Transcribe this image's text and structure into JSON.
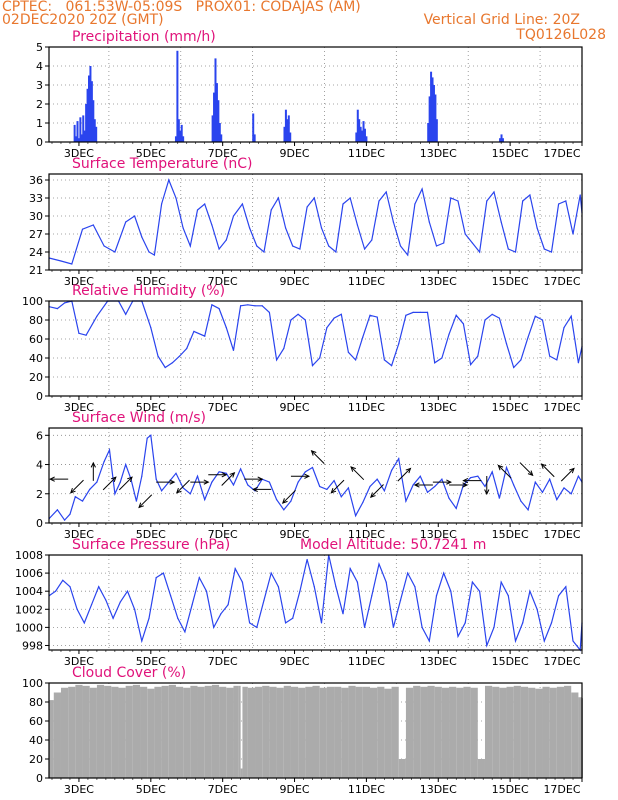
{
  "header": {
    "line1": "CPTEC:   061:53W-05:09S   PROX01: CODAJAS (AM)",
    "line2": "02DEC2020 20Z (GMT)",
    "vertical_grid": "Vertical Grid Line: 20Z",
    "run_code": "TQ0126L028"
  },
  "colors": {
    "header": "#e8772e",
    "title": "#e0127a",
    "line": "#2a44ee",
    "bar": "#2a44ee",
    "cloud": "#ababab",
    "frame": "#000000"
  },
  "chart_data": [
    {
      "id": "precip",
      "type": "bar",
      "title": "Precipitation (mm/h)",
      "ylim": [
        0,
        5
      ],
      "yticks": [
        0,
        1,
        2,
        3,
        4,
        5
      ],
      "xticks": [
        "3DEC",
        "5DEC",
        "7DEC",
        "9DEC",
        "11DEC",
        "13DEC",
        "15DEC",
        "17DEC"
      ],
      "x": [
        2.88,
        2.92,
        2.96,
        3.0,
        3.04,
        3.08,
        3.12,
        3.16,
        3.2,
        3.24,
        3.28,
        3.32,
        3.36,
        3.4,
        3.44,
        3.48,
        5.7,
        5.74,
        5.78,
        5.82,
        5.86,
        5.9,
        6.72,
        6.76,
        6.8,
        6.84,
        6.88,
        6.92,
        6.96,
        7.85,
        7.89,
        8.72,
        8.76,
        8.8,
        8.84,
        8.88,
        10.72,
        10.76,
        10.8,
        10.84,
        10.88,
        10.92,
        10.96,
        11.0,
        12.72,
        12.76,
        12.8,
        12.84,
        12.88,
        12.92,
        12.96,
        14.72,
        14.76,
        14.8
      ],
      "values": [
        0.9,
        0.3,
        1.1,
        0.2,
        1.3,
        0.4,
        1.4,
        0.6,
        2.0,
        2.8,
        3.5,
        4.0,
        3.2,
        2.2,
        1.2,
        0.8,
        0.3,
        4.8,
        1.2,
        0.6,
        0.9,
        0.3,
        1.4,
        2.6,
        4.4,
        3.1,
        2.2,
        1.0,
        0.4,
        1.5,
        0.4,
        0.8,
        1.7,
        1.2,
        1.4,
        0.5,
        0.5,
        1.7,
        1.2,
        0.8,
        0.6,
        1.1,
        0.7,
        0.3,
        1.0,
        2.4,
        3.7,
        3.4,
        3.0,
        2.5,
        1.2,
        0.2,
        0.4,
        0.2
      ]
    },
    {
      "id": "temp",
      "type": "line",
      "title": "Surface Temperature (nC)",
      "ylim": [
        21,
        37
      ],
      "yticks": [
        21,
        24,
        27,
        30,
        33,
        36
      ],
      "xticks": [
        "3DEC",
        "5DEC",
        "7DEC",
        "9DEC",
        "11DEC",
        "13DEC",
        "15DEC",
        "17DEC"
      ],
      "x": [
        2.17,
        2.5,
        2.8,
        3.1,
        3.4,
        3.7,
        4.0,
        4.3,
        4.55,
        4.75,
        4.95,
        5.1,
        5.3,
        5.5,
        5.7,
        5.9,
        6.1,
        6.3,
        6.5,
        6.7,
        6.9,
        7.1,
        7.3,
        7.55,
        7.75,
        7.95,
        8.15,
        8.35,
        8.55,
        8.75,
        8.95,
        9.15,
        9.35,
        9.55,
        9.75,
        9.95,
        10.15,
        10.35,
        10.55,
        10.75,
        10.95,
        11.15,
        11.35,
        11.55,
        11.75,
        11.95,
        12.15,
        12.35,
        12.55,
        12.75,
        12.95,
        13.15,
        13.35,
        13.55,
        13.75,
        13.95,
        14.15,
        14.35,
        14.55,
        14.75,
        14.95,
        15.15,
        15.35,
        15.55,
        15.75,
        15.95,
        16.15,
        16.35,
        16.55,
        16.75,
        16.95,
        17.0
      ],
      "values": [
        23.0,
        22.5,
        22.0,
        27.8,
        28.5,
        25.0,
        24.0,
        29.0,
        30.0,
        26.5,
        24.0,
        23.5,
        32.0,
        36.0,
        33.0,
        28.0,
        25.0,
        31.0,
        32.0,
        28.5,
        24.5,
        26.0,
        30.0,
        32.0,
        28.0,
        25.0,
        24.0,
        31.0,
        33.0,
        28.0,
        25.0,
        24.5,
        31.5,
        33.0,
        28.0,
        25.0,
        24.0,
        32.0,
        33.0,
        28.5,
        24.5,
        26.0,
        32.5,
        34.0,
        29.0,
        25.0,
        23.5,
        32.0,
        34.5,
        29.0,
        25.0,
        25.5,
        33.0,
        32.5,
        27.0,
        25.5,
        24.0,
        32.5,
        34.0,
        29.0,
        24.5,
        24.0,
        32.5,
        33.5,
        28.0,
        24.5,
        24.0,
        32.0,
        32.5,
        27.0,
        33.5,
        30.5
      ]
    },
    {
      "id": "rh",
      "type": "line",
      "title": "Relative Humidity (%)",
      "ylim": [
        0,
        100
      ],
      "yticks": [
        0,
        20,
        40,
        60,
        80,
        100
      ],
      "xticks": [
        "3DEC",
        "5DEC",
        "7DEC",
        "9DEC",
        "11DEC",
        "13DEC",
        "15DEC",
        "17DEC"
      ],
      "x": [
        2.17,
        2.4,
        2.6,
        2.8,
        3.0,
        3.2,
        3.5,
        3.8,
        4.1,
        4.3,
        4.5,
        4.75,
        5.0,
        5.2,
        5.4,
        5.6,
        5.8,
        6.0,
        6.2,
        6.5,
        6.7,
        6.9,
        7.1,
        7.3,
        7.5,
        7.7,
        7.9,
        8.1,
        8.3,
        8.5,
        8.7,
        8.9,
        9.1,
        9.3,
        9.5,
        9.7,
        9.9,
        10.1,
        10.3,
        10.5,
        10.7,
        10.9,
        11.1,
        11.3,
        11.5,
        11.7,
        11.9,
        12.1,
        12.3,
        12.5,
        12.7,
        12.9,
        13.1,
        13.3,
        13.5,
        13.7,
        13.9,
        14.1,
        14.3,
        14.5,
        14.7,
        14.9,
        15.1,
        15.3,
        15.5,
        15.7,
        15.9,
        16.1,
        16.3,
        16.5,
        16.7,
        16.9,
        17.0
      ],
      "values": [
        94,
        92,
        98,
        100,
        66,
        64,
        84,
        100,
        100,
        86,
        100,
        100,
        72,
        42,
        30,
        35,
        42,
        50,
        68,
        63,
        96,
        92,
        72,
        48,
        95,
        96,
        95,
        95,
        88,
        38,
        50,
        80,
        86,
        80,
        32,
        40,
        72,
        82,
        86,
        46,
        38,
        62,
        85,
        83,
        38,
        32,
        55,
        85,
        88,
        88,
        88,
        35,
        40,
        65,
        85,
        76,
        33,
        42,
        80,
        86,
        82,
        55,
        30,
        38,
        62,
        84,
        80,
        42,
        38,
        72,
        84,
        35,
        52
      ]
    },
    {
      "id": "wind",
      "type": "line",
      "title": "Surface Wind (m/s)",
      "ylim": [
        0,
        6.5
      ],
      "yticks": [
        0,
        2,
        4,
        6
      ],
      "xticks": [
        "3DEC",
        "5DEC",
        "7DEC",
        "9DEC",
        "11DEC",
        "13DEC",
        "15DEC",
        "17DEC"
      ],
      "x": [
        2.17,
        2.4,
        2.6,
        2.75,
        2.9,
        3.1,
        3.3,
        3.5,
        3.7,
        3.85,
        4.0,
        4.15,
        4.3,
        4.45,
        4.6,
        4.75,
        4.9,
        5.0,
        5.15,
        5.3,
        5.5,
        5.7,
        5.9,
        6.1,
        6.3,
        6.5,
        6.7,
        6.9,
        7.1,
        7.3,
        7.5,
        7.7,
        7.9,
        8.1,
        8.3,
        8.5,
        8.7,
        8.9,
        9.1,
        9.3,
        9.5,
        9.7,
        9.9,
        10.1,
        10.3,
        10.5,
        10.7,
        10.9,
        11.1,
        11.3,
        11.5,
        11.7,
        11.9,
        12.1,
        12.3,
        12.5,
        12.7,
        12.9,
        13.1,
        13.3,
        13.5,
        13.7,
        13.9,
        14.1,
        14.3,
        14.5,
        14.7,
        14.9,
        15.1,
        15.3,
        15.5,
        15.7,
        15.9,
        16.1,
        16.3,
        16.5,
        16.7,
        16.9,
        17.0
      ],
      "values": [
        0.3,
        0.9,
        0.2,
        0.6,
        1.8,
        1.5,
        2.3,
        2.8,
        4.2,
        5.0,
        2.0,
        2.8,
        4.0,
        3.0,
        1.5,
        3.2,
        5.8,
        6.0,
        3.0,
        2.2,
        2.8,
        3.4,
        2.4,
        2.0,
        3.2,
        1.6,
        2.8,
        3.5,
        3.4,
        2.6,
        3.7,
        2.6,
        2.2,
        3.0,
        2.8,
        1.6,
        0.9,
        1.5,
        2.8,
        3.5,
        3.8,
        2.5,
        2.3,
        2.9,
        1.8,
        2.4,
        0.5,
        1.4,
        2.5,
        3.0,
        2.2,
        3.6,
        4.4,
        1.5,
        2.6,
        3.2,
        2.1,
        2.5,
        3.0,
        1.7,
        1.0,
        2.6,
        3.1,
        3.2,
        2.5,
        3.5,
        1.7,
        3.8,
        2.6,
        1.5,
        0.9,
        2.8,
        2.1,
        3.0,
        1.6,
        2.4,
        2.0,
        3.2,
        2.8
      ],
      "arrows": [
        {
          "x": 2.45,
          "y": 3.0,
          "dir": "W"
        },
        {
          "x": 2.95,
          "y": 2.5,
          "dir": "SW"
        },
        {
          "x": 3.4,
          "y": 3.5,
          "dir": "N"
        },
        {
          "x": 3.85,
          "y": 2.7,
          "dir": "NE"
        },
        {
          "x": 4.3,
          "y": 2.7,
          "dir": "NE"
        },
        {
          "x": 4.85,
          "y": 1.5,
          "dir": "SW"
        },
        {
          "x": 5.4,
          "y": 2.8,
          "dir": "E"
        },
        {
          "x": 5.9,
          "y": 2.5,
          "dir": "SW"
        },
        {
          "x": 6.35,
          "y": 2.8,
          "dir": "E"
        },
        {
          "x": 6.85,
          "y": 3.3,
          "dir": "E"
        },
        {
          "x": 7.15,
          "y": 3.0,
          "dir": "NE"
        },
        {
          "x": 7.85,
          "y": 3.0,
          "dir": "E"
        },
        {
          "x": 8.1,
          "y": 2.3,
          "dir": "W"
        },
        {
          "x": 8.85,
          "y": 1.8,
          "dir": "SW"
        },
        {
          "x": 9.15,
          "y": 3.2,
          "dir": "E"
        },
        {
          "x": 9.65,
          "y": 4.5,
          "dir": "NW"
        },
        {
          "x": 10.2,
          "y": 2.5,
          "dir": "SW"
        },
        {
          "x": 10.75,
          "y": 3.4,
          "dir": "NW"
        },
        {
          "x": 11.3,
          "y": 2.2,
          "dir": "SW"
        },
        {
          "x": 12.05,
          "y": 3.3,
          "dir": "NE"
        },
        {
          "x": 12.6,
          "y": 2.6,
          "dir": "W"
        },
        {
          "x": 13.1,
          "y": 2.8,
          "dir": "E"
        },
        {
          "x": 13.55,
          "y": 2.6,
          "dir": "E"
        },
        {
          "x": 13.95,
          "y": 2.9,
          "dir": "W"
        },
        {
          "x": 14.35,
          "y": 2.6,
          "dir": "S"
        },
        {
          "x": 14.85,
          "y": 3.5,
          "dir": "NW"
        },
        {
          "x": 15.45,
          "y": 3.7,
          "dir": "SE"
        },
        {
          "x": 16.05,
          "y": 3.6,
          "dir": "NW"
        },
        {
          "x": 16.6,
          "y": 3.3,
          "dir": "NE"
        }
      ]
    },
    {
      "id": "pres",
      "type": "line",
      "title": "Surface Pressure (hPa)",
      "annotation": "Model Altitude: 50.7241 m",
      "ylim": [
        997.5,
        1008
      ],
      "yticks": [
        998,
        1000,
        1002,
        1004,
        1006,
        1008
      ],
      "xticks": [
        "3DEC",
        "5DEC",
        "7DEC",
        "9DEC",
        "11DEC",
        "13DEC",
        "15DEC",
        "17DEC"
      ],
      "x": [
        2.17,
        2.35,
        2.55,
        2.75,
        2.95,
        3.15,
        3.35,
        3.55,
        3.75,
        3.95,
        4.15,
        4.35,
        4.55,
        4.75,
        4.95,
        5.15,
        5.35,
        5.55,
        5.75,
        5.95,
        6.15,
        6.35,
        6.55,
        6.75,
        6.95,
        7.15,
        7.35,
        7.55,
        7.75,
        7.95,
        8.15,
        8.35,
        8.55,
        8.75,
        8.95,
        9.15,
        9.35,
        9.55,
        9.75,
        9.95,
        10.15,
        10.35,
        10.55,
        10.75,
        10.95,
        11.15,
        11.35,
        11.55,
        11.75,
        11.95,
        12.15,
        12.35,
        12.55,
        12.75,
        12.95,
        13.15,
        13.35,
        13.55,
        13.75,
        13.95,
        14.15,
        14.35,
        14.55,
        14.75,
        14.95,
        15.15,
        15.35,
        15.55,
        15.75,
        15.95,
        16.15,
        16.35,
        16.55,
        16.75,
        16.95,
        17.0
      ],
      "values": [
        1003.5,
        1004.0,
        1005.2,
        1004.5,
        1002.0,
        1000.5,
        1002.5,
        1004.5,
        1003.0,
        1001.0,
        1002.8,
        1004.0,
        1002.0,
        998.5,
        1001.0,
        1005.5,
        1006.0,
        1003.5,
        1001.0,
        999.5,
        1002.5,
        1005.5,
        1004.0,
        1000.0,
        1001.5,
        1002.5,
        1006.5,
        1005.0,
        1000.5,
        1000.0,
        1003.0,
        1006.0,
        1004.5,
        1000.5,
        1001.0,
        1004.0,
        1007.5,
        1004.5,
        1000.5,
        1008.0,
        1004.5,
        1001.5,
        1006.5,
        1005.0,
        1000.0,
        1003.5,
        1007.0,
        1005.0,
        1000.0,
        1003.0,
        1006.0,
        1004.5,
        1000.0,
        998.5,
        1003.5,
        1006.0,
        1004.0,
        999.0,
        1000.5,
        1005.0,
        1004.0,
        998.0,
        1000.0,
        1005.0,
        1003.5,
        998.5,
        1000.5,
        1004.0,
        1002.0,
        998.5,
        1000.5,
        1003.5,
        1004.5,
        998.5,
        997.5,
        1000.5
      ]
    },
    {
      "id": "cloud",
      "type": "area",
      "title": "Cloud Cover (%)",
      "ylim": [
        0,
        100
      ],
      "yticks": [
        0,
        20,
        40,
        60,
        80,
        100
      ],
      "xticks": [
        "3DEC",
        "5DEC",
        "7DEC",
        "9DEC",
        "11DEC",
        "13DEC",
        "15DEC",
        "17DEC"
      ],
      "x": [
        2.17,
        2.3,
        2.5,
        2.7,
        2.9,
        3.1,
        3.3,
        3.5,
        3.7,
        3.9,
        4.1,
        4.3,
        4.5,
        4.7,
        4.9,
        5.1,
        5.3,
        5.5,
        5.7,
        5.9,
        6.1,
        6.3,
        6.5,
        6.7,
        6.9,
        7.1,
        7.3,
        7.45,
        7.5,
        7.55,
        7.7,
        7.9,
        8.1,
        8.3,
        8.5,
        8.7,
        8.9,
        9.1,
        9.3,
        9.5,
        9.7,
        9.9,
        10.1,
        10.3,
        10.5,
        10.7,
        10.9,
        11.1,
        11.3,
        11.5,
        11.7,
        11.9,
        12.1,
        12.3,
        12.5,
        12.7,
        12.9,
        13.1,
        13.3,
        13.5,
        13.7,
        13.9,
        14.1,
        14.3,
        14.5,
        14.7,
        14.9,
        15.1,
        15.3,
        15.5,
        15.7,
        15.9,
        16.1,
        16.3,
        16.5,
        16.7,
        16.9,
        17.0
      ],
      "values": [
        82,
        90,
        95,
        96,
        98,
        97,
        95,
        98,
        97,
        96,
        95,
        97,
        98,
        96,
        94,
        96,
        97,
        98,
        96,
        95,
        97,
        96,
        97,
        98,
        96,
        95,
        97,
        97,
        10,
        96,
        95,
        96,
        97,
        96,
        95,
        97,
        96,
        95,
        96,
        97,
        95,
        96,
        96,
        95,
        97,
        96,
        96,
        95,
        96,
        94,
        96,
        20,
        95,
        97,
        96,
        97,
        96,
        95,
        96,
        95,
        96,
        95,
        20,
        97,
        96,
        95,
        96,
        97,
        96,
        95,
        94,
        96,
        95,
        96,
        97,
        90,
        85,
        84
      ]
    }
  ]
}
